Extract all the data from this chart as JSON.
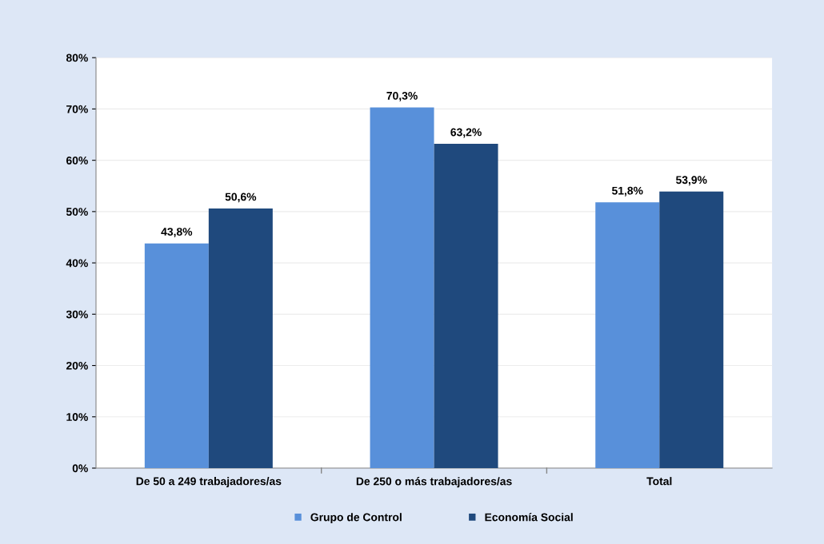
{
  "chart_data": {
    "type": "bar",
    "categories": [
      "De 50 a 249 trabajadores/as",
      "De 250 o más trabajadores/as",
      "Total"
    ],
    "series": [
      {
        "name": "Grupo de Control",
        "color": "#5890da",
        "values": [
          43.8,
          70.3,
          51.8
        ],
        "value_labels": [
          "43,8%",
          "70,3%",
          "51,8%"
        ]
      },
      {
        "name": "Economía Social",
        "color": "#1f497d",
        "values": [
          50.6,
          63.2,
          53.9
        ],
        "value_labels": [
          "50,6%",
          "63,2%",
          "53,9%"
        ]
      }
    ],
    "ylim": [
      0,
      80
    ],
    "yticks": [
      {
        "value": 0,
        "label": "0%"
      },
      {
        "value": 10,
        "label": "10%"
      },
      {
        "value": 20,
        "label": "20%"
      },
      {
        "value": 30,
        "label": "30%"
      },
      {
        "value": 40,
        "label": "40%"
      },
      {
        "value": 50,
        "label": "50%"
      },
      {
        "value": 60,
        "label": "60%"
      },
      {
        "value": 70,
        "label": "70%"
      },
      {
        "value": 80,
        "label": "80%"
      }
    ],
    "grid": "y",
    "legend": "bottom"
  }
}
